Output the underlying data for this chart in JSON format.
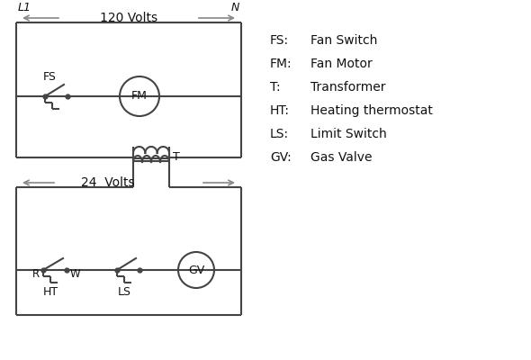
{
  "bg_color": "#ffffff",
  "line_color": "#444444",
  "gray_color": "#888888",
  "text_color": "#111111",
  "legend": [
    [
      "FS:",
      "Fan Switch"
    ],
    [
      "FM:",
      "Fan Motor"
    ],
    [
      "T:",
      "Transformer"
    ],
    [
      "HT:",
      "Heating thermostat"
    ],
    [
      "LS:",
      "Limit Switch"
    ],
    [
      "GV:",
      "Gas Valve"
    ]
  ],
  "label_L1": "L1",
  "label_N": "N",
  "label_120V": "120 Volts",
  "label_24V": "24  Volts",
  "label_T": "T"
}
